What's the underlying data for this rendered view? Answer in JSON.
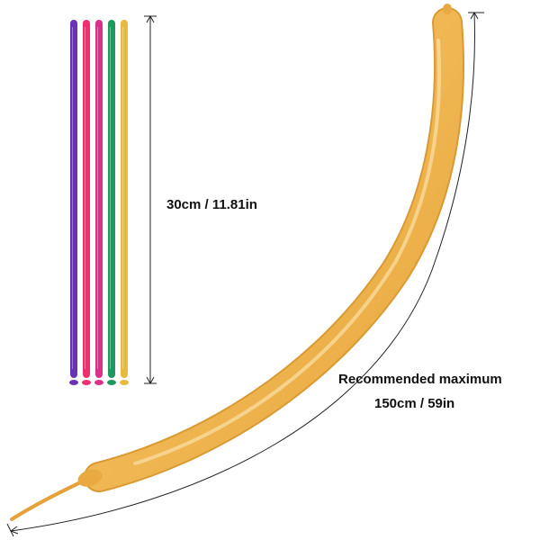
{
  "image": {
    "background": "#ffffff",
    "short_balloons": {
      "count": 5,
      "colors": [
        "#6a33b5",
        "#f0306e",
        "#d9318c",
        "#1f9a5e",
        "#e7b93f"
      ],
      "length_label": "30cm / 11.81in"
    },
    "long_balloon": {
      "color": "#f1b14b",
      "label_line1": "Recommended maximum",
      "label_line2": "150cm / 59in"
    },
    "measure_lines": {
      "color": "#222222"
    }
  }
}
